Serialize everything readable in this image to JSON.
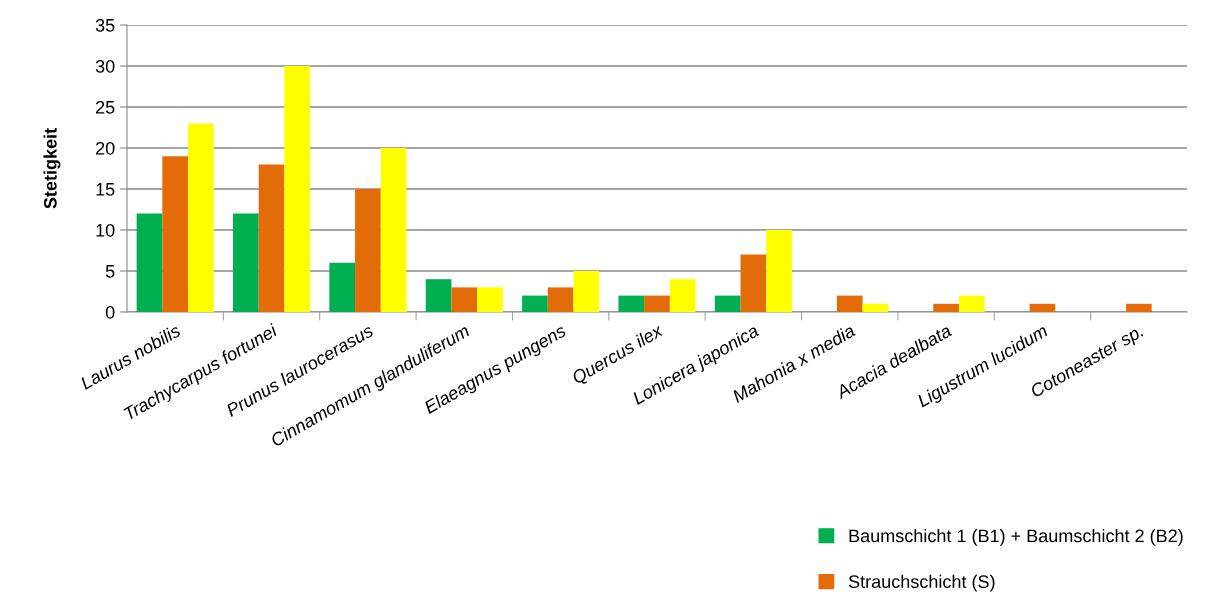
{
  "chart_data": {
    "type": "bar",
    "ylabel": "Stetigkeit",
    "categories": [
      "Laurus nobilis",
      "Trachycarpus fortunei",
      "Prunus laurocerasus",
      "Cinnamomum glanduliferum",
      "Elaeagnus pungens",
      "Quercus ilex",
      "Lonicera japonica",
      "Mahonia x media",
      "Acacia dealbata",
      "Ligustrum lucidum",
      "Cotoneaster sp."
    ],
    "series": [
      {
        "name": "Baumschicht 1 (B1) + Baumschicht 2 (B2)",
        "color": "#00b050",
        "values": [
          12,
          12,
          6,
          4,
          2,
          2,
          2,
          0,
          0,
          0,
          0
        ]
      },
      {
        "name": "Strauchschicht (S)",
        "color": "#e36c09",
        "values": [
          19,
          18,
          15,
          3,
          3,
          2,
          7,
          2,
          1,
          1,
          1
        ]
      },
      {
        "color": "#ffff00",
        "values": [
          23,
          30,
          20,
          3,
          5,
          4,
          10,
          1,
          2,
          0,
          0
        ]
      }
    ],
    "ylim": [
      0,
      35
    ],
    "yticks": [
      0,
      5,
      10,
      15,
      20,
      25,
      30,
      35
    ],
    "grid": "y",
    "legend": "bottom right"
  }
}
